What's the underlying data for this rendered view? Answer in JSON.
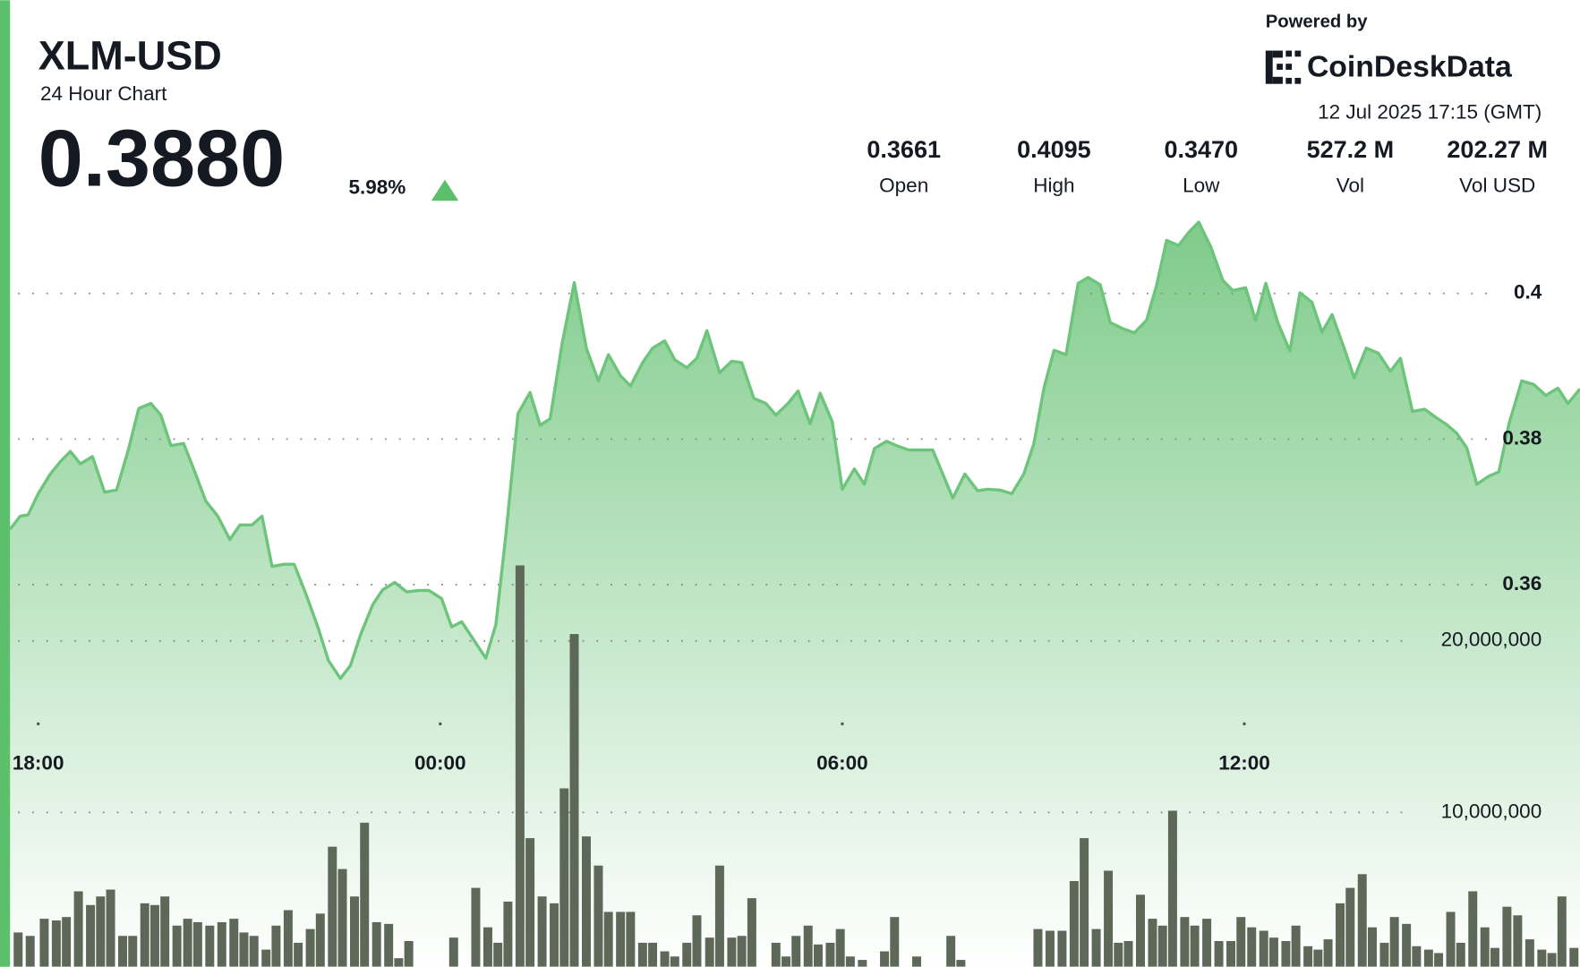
{
  "header": {
    "powered_by": "Powered by",
    "brand": "CoinDeskData",
    "timestamp": "12 Jul 2025 17:15 (GMT)",
    "price": "0.3880",
    "change": "5.98%",
    "stats": [
      {
        "value": "0.3661",
        "label": "Open"
      },
      {
        "value": "0.4095",
        "label": "High"
      },
      {
        "value": "0.3470",
        "label": "Low"
      },
      {
        "value": "527.2 M",
        "label": "Vol"
      },
      {
        "value": "202.27 M",
        "label": "Vol USD"
      }
    ]
  },
  "chart_data": {
    "type": "area",
    "title": "XLM-USD",
    "subtitle": "24 Hour Chart",
    "xlim": [
      -6.42,
      17.01
    ],
    "xticks": [
      {
        "value": -6,
        "label": "18:00"
      },
      {
        "value": 0,
        "label": "00:00"
      },
      {
        "value": 6,
        "label": "06:00"
      },
      {
        "value": 12,
        "label": "12:00"
      }
    ],
    "ylim": [
      0.3075,
      0.41
    ],
    "yticks": [
      0.36,
      0.38,
      0.4
    ],
    "y2lim": [
      1000000,
      44500000
    ],
    "y2ticks": [
      {
        "value": 10000000,
        "label": "10,000,000"
      },
      {
        "value": 20000000,
        "label": "20,000,000"
      }
    ],
    "grid": true,
    "series": [
      {
        "type": "area",
        "color": "#6cc57a",
        "x": [
          -6.42,
          -6.27,
          -6.15,
          -6.0,
          -5.82,
          -5.67,
          -5.52,
          -5.37,
          -5.19,
          -5.01,
          -4.83,
          -4.65,
          -4.5,
          -4.32,
          -4.17,
          -4.02,
          -3.83,
          -3.68,
          -3.5,
          -3.32,
          -3.14,
          -2.99,
          -2.81,
          -2.66,
          -2.51,
          -2.33,
          -2.18,
          -2.0,
          -1.82,
          -1.67,
          -1.49,
          -1.34,
          -1.19,
          -1.01,
          -0.86,
          -0.68,
          -0.5,
          -0.32,
          -0.17,
          0.02,
          0.17,
          0.32,
          0.5,
          0.68,
          0.83,
          0.98,
          1.16,
          1.34,
          1.49,
          1.64,
          1.82,
          2.0,
          2.18,
          2.36,
          2.51,
          2.69,
          2.84,
          3.02,
          3.17,
          3.35,
          3.5,
          3.68,
          3.83,
          3.98,
          4.17,
          4.35,
          4.5,
          4.68,
          4.86,
          5.01,
          5.19,
          5.34,
          5.52,
          5.67,
          5.85,
          6.0,
          6.18,
          6.33,
          6.48,
          6.66,
          6.81,
          6.99,
          7.17,
          7.35,
          7.5,
          7.65,
          7.83,
          8.02,
          8.17,
          8.35,
          8.53,
          8.71,
          8.86,
          9.01,
          9.16,
          9.34,
          9.52,
          9.67,
          9.85,
          10.0,
          10.18,
          10.36,
          10.54,
          10.69,
          10.84,
          11.02,
          11.17,
          11.32,
          11.5,
          11.68,
          11.83,
          12.02,
          12.17,
          12.32,
          12.5,
          12.68,
          12.83,
          13.01,
          13.16,
          13.31,
          13.49,
          13.64,
          13.82,
          14.0,
          14.18,
          14.33,
          14.51,
          14.69,
          14.84,
          15.02,
          15.17,
          15.32,
          15.47,
          15.65,
          15.8,
          15.95,
          16.14,
          16.32,
          16.5,
          16.68,
          16.83,
          17.01
        ],
        "values": [
          0.3676,
          0.3694,
          0.3696,
          0.3725,
          0.3752,
          0.3769,
          0.3783,
          0.3766,
          0.3776,
          0.3727,
          0.373,
          0.3787,
          0.3842,
          0.3849,
          0.3833,
          0.3791,
          0.3794,
          0.3759,
          0.3715,
          0.3694,
          0.3662,
          0.3682,
          0.3682,
          0.3694,
          0.3625,
          0.3628,
          0.3628,
          0.3586,
          0.354,
          0.3496,
          0.3471,
          0.3489,
          0.3531,
          0.3572,
          0.3593,
          0.3603,
          0.359,
          0.3592,
          0.3592,
          0.3581,
          0.3542,
          0.3549,
          0.3524,
          0.3499,
          0.3545,
          0.3669,
          0.3835,
          0.3864,
          0.3819,
          0.3828,
          0.3932,
          0.4015,
          0.3925,
          0.388,
          0.3916,
          0.3887,
          0.3873,
          0.3905,
          0.3925,
          0.3935,
          0.3909,
          0.3898,
          0.3911,
          0.3949,
          0.3891,
          0.3907,
          0.3905,
          0.3856,
          0.3849,
          0.3833,
          0.3849,
          0.3866,
          0.3821,
          0.3863,
          0.3824,
          0.3731,
          0.3759,
          0.3738,
          0.3787,
          0.3797,
          0.3791,
          0.3785,
          0.3785,
          0.3785,
          0.3752,
          0.3719,
          0.3752,
          0.3729,
          0.3731,
          0.373,
          0.3725,
          0.3752,
          0.3794,
          0.387,
          0.3922,
          0.3916,
          0.4014,
          0.4022,
          0.4012,
          0.396,
          0.3952,
          0.3946,
          0.3963,
          0.4011,
          0.4073,
          0.4066,
          0.4084,
          0.4098,
          0.4064,
          0.4018,
          0.4004,
          0.4008,
          0.3963,
          0.4014,
          0.396,
          0.3921,
          0.4001,
          0.3988,
          0.3947,
          0.3971,
          0.3925,
          0.3884,
          0.3925,
          0.3918,
          0.3893,
          0.3911,
          0.3838,
          0.3841,
          0.3831,
          0.382,
          0.3808,
          0.3788,
          0.3738,
          0.3749,
          0.3755,
          0.3821,
          0.388,
          0.3875,
          0.386,
          0.387,
          0.3849,
          0.3869
        ]
      },
      {
        "type": "bar",
        "axis": "y2",
        "color": "#5d6859",
        "x": [
          -6.3,
          -6.12,
          -5.91,
          -5.73,
          -5.58,
          -5.4,
          -5.22,
          -5.07,
          -4.92,
          -4.74,
          -4.59,
          -4.41,
          -4.26,
          -4.11,
          -3.93,
          -3.77,
          -3.62,
          -3.44,
          -3.26,
          -3.08,
          -2.93,
          -2.78,
          -2.6,
          -2.45,
          -2.27,
          -2.12,
          -1.94,
          -1.79,
          -1.61,
          -1.46,
          -1.28,
          -1.13,
          -0.95,
          -0.77,
          -0.62,
          -0.47,
          0.2,
          0.53,
          0.71,
          0.86,
          1.01,
          1.19,
          1.34,
          1.52,
          1.7,
          1.85,
          2.0,
          2.18,
          2.36,
          2.51,
          2.69,
          2.84,
          3.02,
          3.17,
          3.35,
          3.5,
          3.68,
          3.83,
          4.02,
          4.17,
          4.35,
          4.5,
          4.65,
          5.01,
          5.16,
          5.31,
          5.49,
          5.64,
          5.82,
          5.97,
          6.12,
          6.3,
          6.63,
          6.78,
          7.11,
          7.62,
          7.77,
          8.92,
          9.1,
          9.28,
          9.46,
          9.61,
          9.79,
          9.97,
          10.12,
          10.27,
          10.45,
          10.63,
          10.78,
          10.93,
          11.11,
          11.26,
          11.44,
          11.62,
          11.8,
          11.95,
          12.11,
          12.29,
          12.44,
          12.62,
          12.77,
          12.95,
          13.1,
          13.25,
          13.43,
          13.58,
          13.76,
          13.91,
          14.09,
          14.24,
          14.42,
          14.57,
          14.75,
          14.9,
          15.08,
          15.23,
          15.41,
          15.59,
          15.74,
          15.92,
          16.08,
          16.26,
          16.44,
          16.59,
          16.74,
          16.92
        ],
        "values": [
          3000000,
          2800000,
          3800000,
          3700000,
          3900000,
          5400000,
          4600000,
          5100000,
          5500000,
          2800000,
          2800000,
          4700000,
          4600000,
          5100000,
          3400000,
          3800000,
          3600000,
          3400000,
          3600000,
          3800000,
          3000000,
          2800000,
          2000000,
          3400000,
          4300000,
          2400000,
          3200000,
          4100000,
          8000000,
          6700000,
          5100000,
          9400000,
          3600000,
          3500000,
          1500000,
          2500000,
          2700000,
          5600000,
          3300000,
          2400000,
          4800000,
          24400000,
          8500000,
          5100000,
          4700000,
          11400000,
          20400000,
          8600000,
          6900000,
          4200000,
          4200000,
          4200000,
          2400000,
          2400000,
          1900000,
          1600000,
          2400000,
          4000000,
          2700000,
          6900000,
          2700000,
          2800000,
          5000000,
          2400000,
          1600000,
          2800000,
          3400000,
          2300000,
          2400000,
          3200000,
          1600000,
          1400000,
          1900000,
          3900000,
          1600000,
          2800000,
          1400000,
          3200000,
          3100000,
          3100000,
          6000000,
          8500000,
          3200000,
          6600000,
          2400000,
          2500000,
          5200000,
          3800000,
          3400000,
          10100000,
          3900000,
          3400000,
          3800000,
          2500000,
          2500000,
          3900000,
          3300000,
          3100000,
          2700000,
          2500000,
          3400000,
          2200000,
          2000000,
          2600000,
          4700000,
          5600000,
          6400000,
          3300000,
          2400000,
          3900000,
          3500000,
          2200000,
          2000000,
          1800000,
          4200000,
          2400000,
          5400000,
          3300000,
          2100000,
          4500000,
          4000000,
          2600000,
          2000000,
          1800000,
          5100000,
          2100000
        ]
      }
    ]
  }
}
